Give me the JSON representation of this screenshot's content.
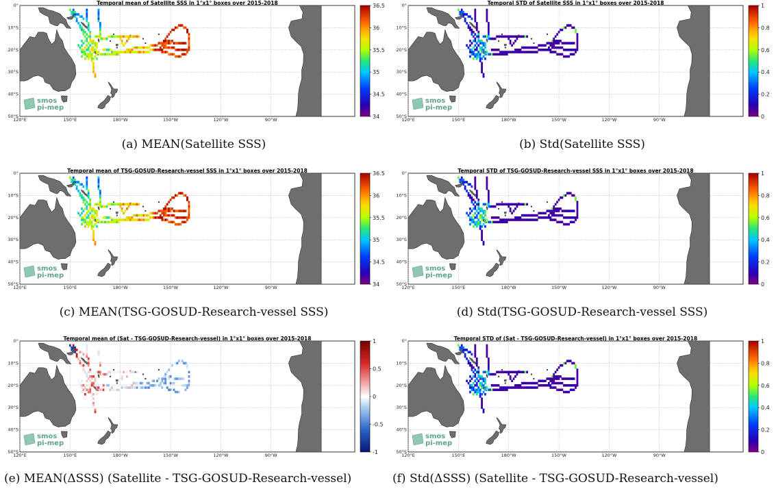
{
  "panels": [
    {
      "id": "a",
      "title": "Temporal mean of Satellite SSS in 1°x1° boxes over 2015-2018",
      "caption": "(a) MEAN(Satellite SSS)",
      "colormap": "jet",
      "cbar_ticks": [
        "36.5",
        "36",
        "35.5",
        "35",
        "34.5",
        "34"
      ],
      "cbar_range": [
        34,
        36.5
      ]
    },
    {
      "id": "b",
      "title": "Temporal STD of Satellite SSS in 1°x1° boxes over 2015-2018",
      "caption": "(b) Std(Satellite SSS)",
      "colormap": "jet",
      "cbar_ticks": [
        "1",
        "0.8",
        "0.6",
        "0.4",
        "0.2",
        "0"
      ],
      "cbar_range": [
        0,
        1
      ]
    },
    {
      "id": "c",
      "title": "Temporal mean of TSG-GOSUD-Research-vessel SSS in 1°x1° boxes over 2015-2018",
      "caption": "(c) MEAN(TSG-GOSUD-Research-vessel SSS)",
      "colormap": "jet",
      "cbar_ticks": [
        "36.5",
        "36",
        "35.5",
        "35",
        "34.5",
        "34"
      ],
      "cbar_range": [
        34,
        36.5
      ]
    },
    {
      "id": "d",
      "title": "Temporal STD of TSG-GOSUD-Research-vessel SSS in 1°x1° boxes over 2015-2018",
      "caption": "(d) Std(TSG-GOSUD-Research-vessel SSS)",
      "colormap": "jet",
      "cbar_ticks": [
        "1",
        "0.8",
        "0.6",
        "0.4",
        "0.2",
        "0"
      ],
      "cbar_range": [
        0,
        1
      ]
    },
    {
      "id": "e",
      "title": "Temporal mean of (Sat - TSG-GOSUD-Research-vessel) in 1°x1° boxes over 2015-2018",
      "caption": "(e) MEAN(ΔSSS) (Satellite - TSG-GOSUD-Research-vessel)",
      "colormap": "diverging",
      "cbar_ticks": [
        "1",
        "0.5",
        "0",
        "-0.5",
        "-1"
      ],
      "cbar_range": [
        -1,
        1
      ]
    },
    {
      "id": "f",
      "title": "Temporal STD of (Sat - TSG-GOSUD-Research-vessel) in 1°x1° boxes over 2015-2018",
      "caption": "(f) Std(ΔSSS) (Satellite - TSG-GOSUD-Research-vessel)",
      "colormap": "jet",
      "cbar_ticks": [
        "1",
        "0.8",
        "0.6",
        "0.4",
        "0.2",
        "0"
      ],
      "cbar_range": [
        0,
        1
      ]
    }
  ],
  "map": {
    "lat_labels": [
      "0°",
      "10°S",
      "20°S",
      "30°S",
      "40°S",
      "50°S"
    ],
    "lon_labels": [
      "120°E",
      "150°E",
      "180°W",
      "150°W",
      "120°W",
      "90°W"
    ],
    "logo_line1": "smos",
    "logo_line2": "pi-mep",
    "land_color": "#6e6e6e",
    "grid_color": "#b5b5b5"
  },
  "chart_data": {
    "type": "heatmap",
    "region": {
      "lon_range": [
        "120°E",
        "80°W"
      ],
      "lat_range": [
        "0°",
        "50°S"
      ]
    },
    "grid_resolution": "1°x1°",
    "period": "2015-2018",
    "panels": [
      "a",
      "b",
      "c",
      "d",
      "e",
      "f"
    ]
  }
}
